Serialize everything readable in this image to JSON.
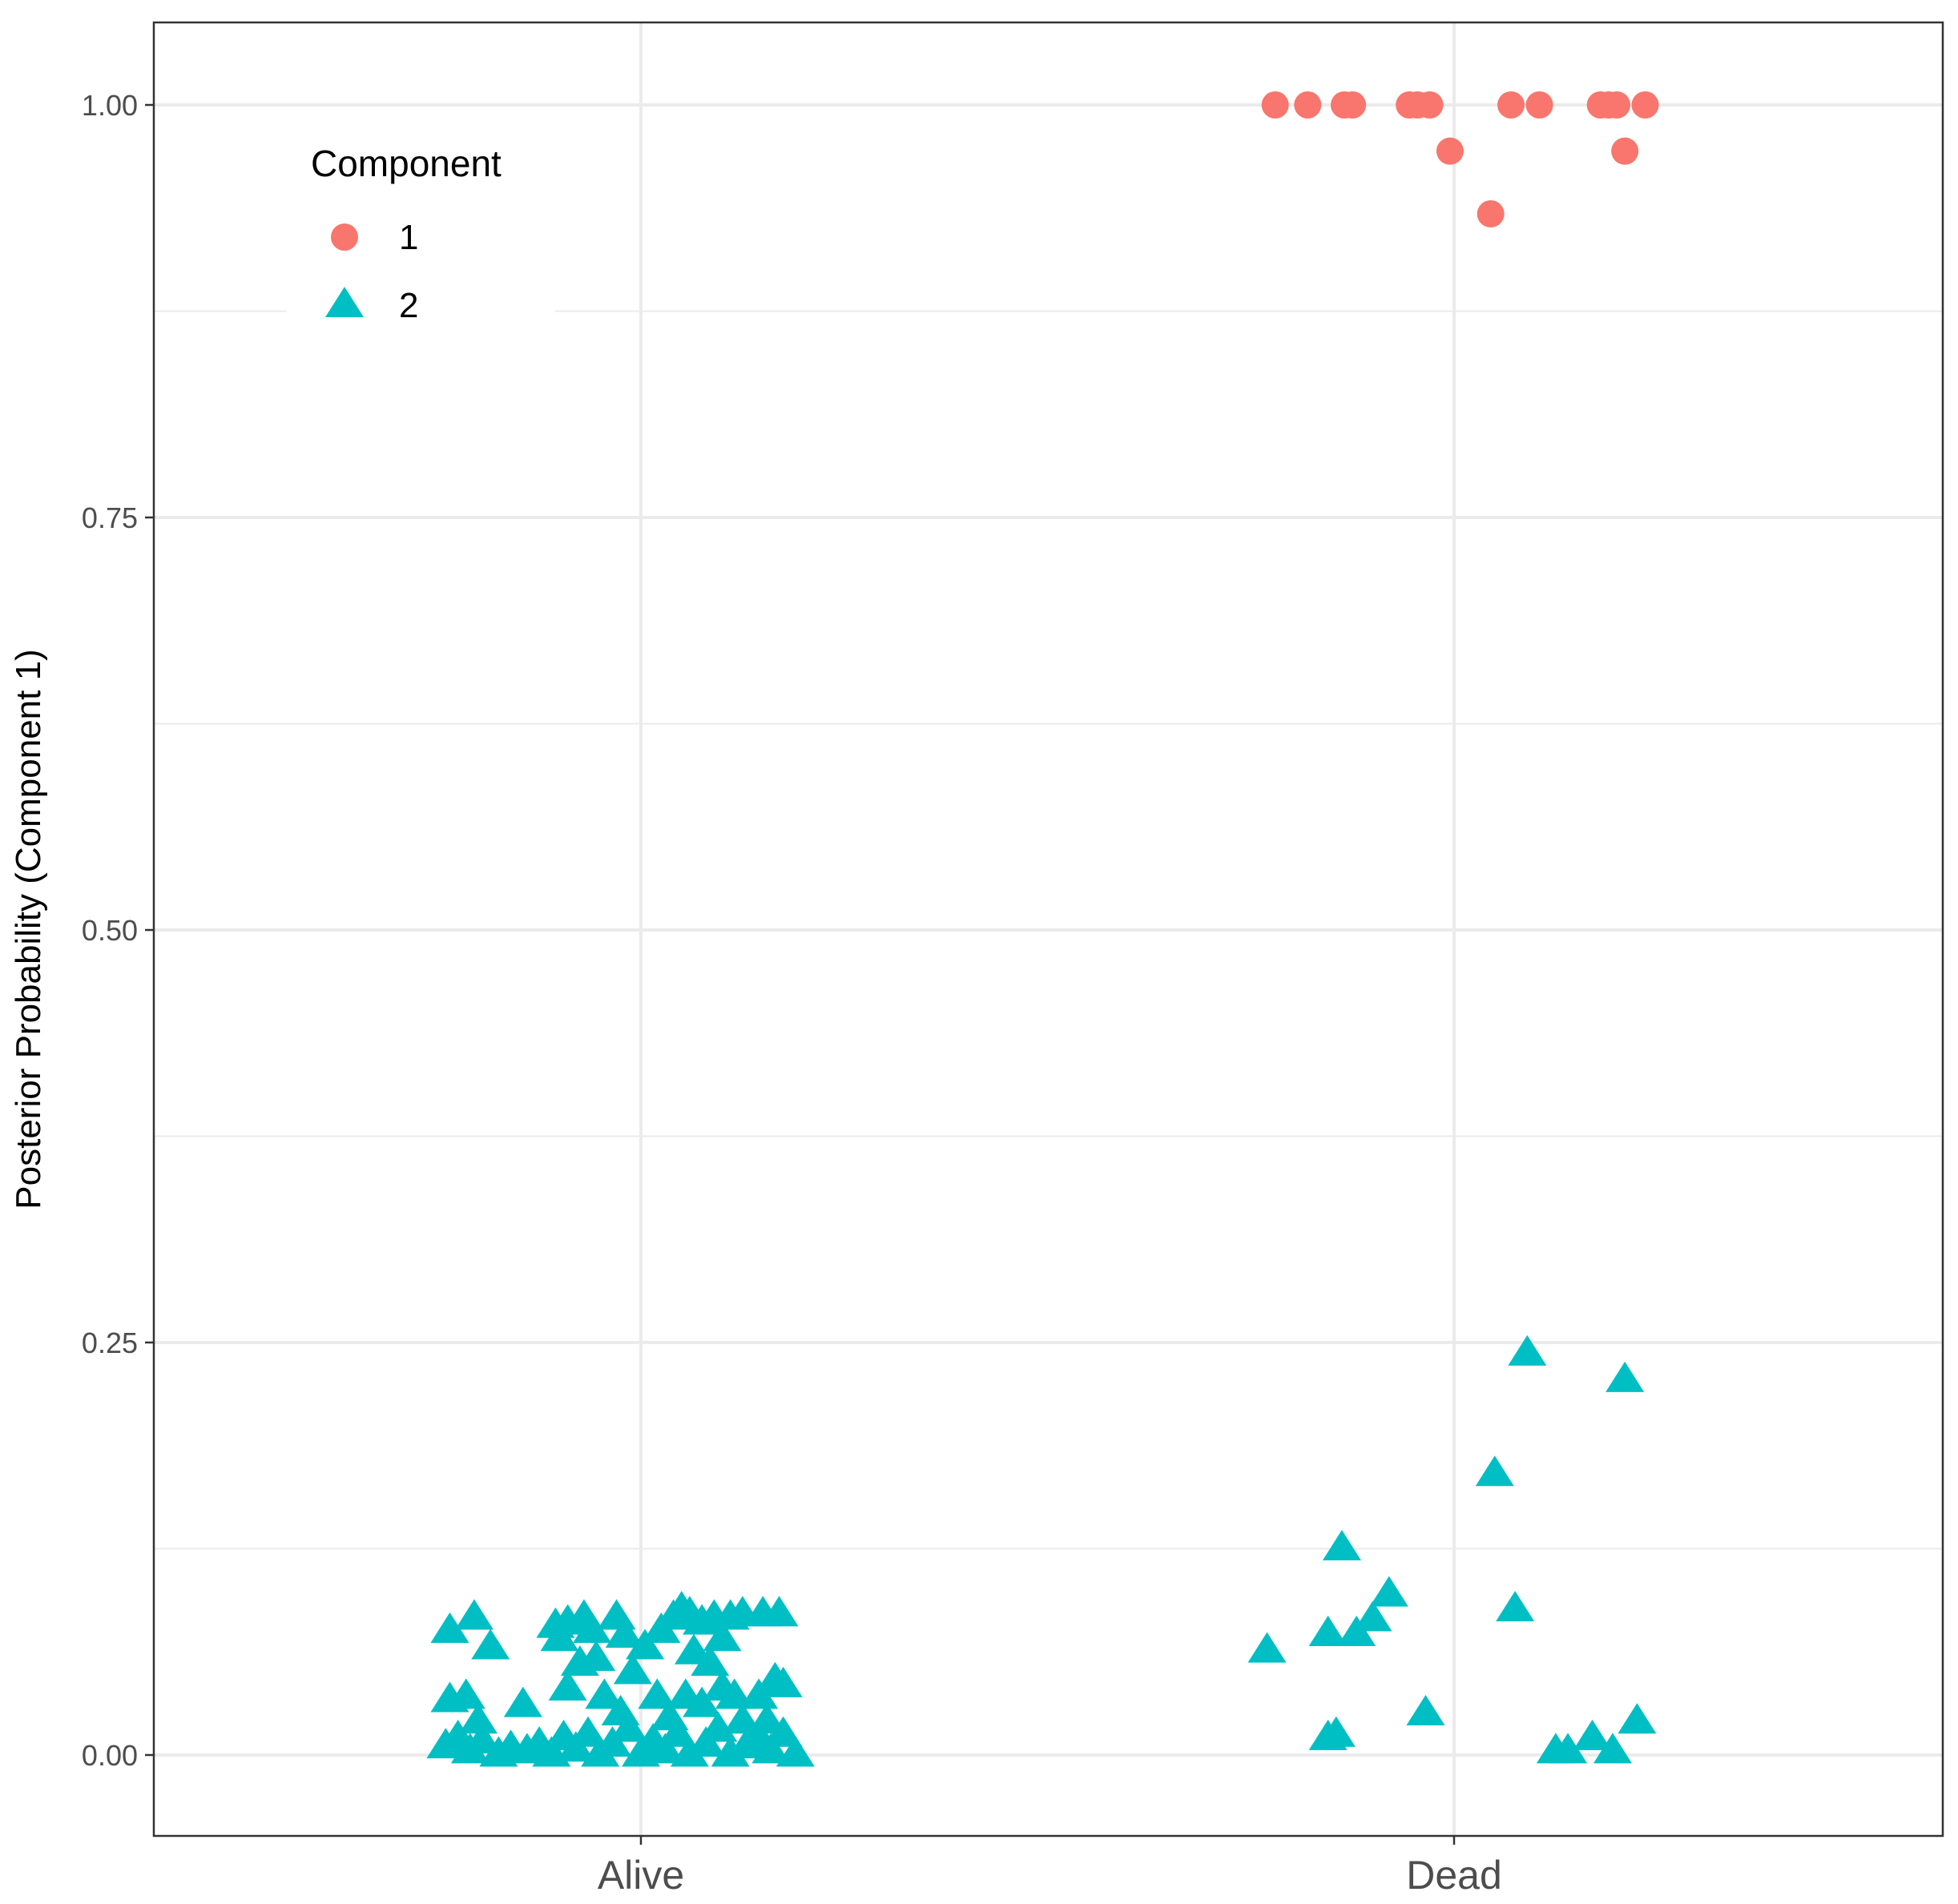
{
  "chart_data": {
    "type": "scatter",
    "title": "",
    "xlabel": "",
    "ylabel": "Posterior Probability (Component 1)",
    "categories": [
      "Alive",
      "Dead"
    ],
    "ylim": [
      -0.05,
      1.05
    ],
    "y_ticks": [
      0.0,
      0.25,
      0.5,
      0.75,
      1.0
    ],
    "y_tick_labels": [
      "0.00",
      "0.25",
      "0.50",
      "0.75",
      "1.00"
    ],
    "grid": true,
    "jitter_width": 0.5,
    "legend": {
      "title": "Component",
      "position": "top-left",
      "entries": [
        {
          "label": "1",
          "shape": "circle",
          "color": "#F8766D"
        },
        {
          "label": "2",
          "shape": "triangle",
          "color": "#00BFC4"
        }
      ]
    },
    "series": [
      {
        "name": "1",
        "shape": "circle",
        "color": "#F8766D",
        "points": [
          {
            "x": "Dead",
            "offset": -0.22,
            "y": 1.0
          },
          {
            "x": "Dead",
            "offset": -0.18,
            "y": 1.0
          },
          {
            "x": "Dead",
            "offset": -0.135,
            "y": 1.0
          },
          {
            "x": "Dead",
            "offset": -0.125,
            "y": 1.0
          },
          {
            "x": "Dead",
            "offset": -0.055,
            "y": 1.0
          },
          {
            "x": "Dead",
            "offset": -0.045,
            "y": 1.0
          },
          {
            "x": "Dead",
            "offset": -0.03,
            "y": 1.0
          },
          {
            "x": "Dead",
            "offset": -0.005,
            "y": 0.972
          },
          {
            "x": "Dead",
            "offset": 0.045,
            "y": 0.934
          },
          {
            "x": "Dead",
            "offset": 0.07,
            "y": 1.0
          },
          {
            "x": "Dead",
            "offset": 0.105,
            "y": 1.0
          },
          {
            "x": "Dead",
            "offset": 0.18,
            "y": 1.0
          },
          {
            "x": "Dead",
            "offset": 0.19,
            "y": 1.0
          },
          {
            "x": "Dead",
            "offset": 0.2,
            "y": 1.0
          },
          {
            "x": "Dead",
            "offset": 0.21,
            "y": 0.972
          },
          {
            "x": "Dead",
            "offset": 0.235,
            "y": 1.0
          }
        ]
      },
      {
        "name": "2",
        "shape": "triangle",
        "color": "#00BFC4",
        "points": [
          {
            "x": "Alive",
            "offset": -0.235,
            "y": 0.075
          },
          {
            "x": "Alive",
            "offset": -0.205,
            "y": 0.083
          },
          {
            "x": "Alive",
            "offset": -0.185,
            "y": 0.065
          },
          {
            "x": "Alive",
            "offset": -0.235,
            "y": 0.033
          },
          {
            "x": "Alive",
            "offset": -0.215,
            "y": 0.035
          },
          {
            "x": "Alive",
            "offset": -0.145,
            "y": 0.03
          },
          {
            "x": "Alive",
            "offset": -0.105,
            "y": 0.078
          },
          {
            "x": "Alive",
            "offset": -0.09,
            "y": 0.08
          },
          {
            "x": "Alive",
            "offset": -0.1,
            "y": 0.07
          },
          {
            "x": "Alive",
            "offset": -0.07,
            "y": 0.083
          },
          {
            "x": "Alive",
            "offset": -0.06,
            "y": 0.075
          },
          {
            "x": "Alive",
            "offset": -0.09,
            "y": 0.04
          },
          {
            "x": "Alive",
            "offset": -0.075,
            "y": 0.055
          },
          {
            "x": "Alive",
            "offset": -0.055,
            "y": 0.058
          },
          {
            "x": "Alive",
            "offset": -0.045,
            "y": 0.035
          },
          {
            "x": "Alive",
            "offset": -0.03,
            "y": 0.083
          },
          {
            "x": "Alive",
            "offset": -0.02,
            "y": 0.072
          },
          {
            "x": "Alive",
            "offset": -0.01,
            "y": 0.05
          },
          {
            "x": "Alive",
            "offset": 0.005,
            "y": 0.065
          },
          {
            "x": "Alive",
            "offset": -0.025,
            "y": 0.025
          },
          {
            "x": "Alive",
            "offset": 0.025,
            "y": 0.075
          },
          {
            "x": "Alive",
            "offset": 0.02,
            "y": 0.035
          },
          {
            "x": "Alive",
            "offset": 0.04,
            "y": 0.083
          },
          {
            "x": "Alive",
            "offset": 0.05,
            "y": 0.088
          },
          {
            "x": "Alive",
            "offset": 0.06,
            "y": 0.085
          },
          {
            "x": "Alive",
            "offset": 0.075,
            "y": 0.08
          },
          {
            "x": "Alive",
            "offset": 0.065,
            "y": 0.062
          },
          {
            "x": "Alive",
            "offset": 0.09,
            "y": 0.083
          },
          {
            "x": "Alive",
            "offset": 0.1,
            "y": 0.07
          },
          {
            "x": "Alive",
            "offset": 0.055,
            "y": 0.035
          },
          {
            "x": "Alive",
            "offset": 0.075,
            "y": 0.03
          },
          {
            "x": "Alive",
            "offset": 0.085,
            "y": 0.055
          },
          {
            "x": "Alive",
            "offset": 0.11,
            "y": 0.083
          },
          {
            "x": "Alive",
            "offset": 0.125,
            "y": 0.085
          },
          {
            "x": "Alive",
            "offset": 0.15,
            "y": 0.085
          },
          {
            "x": "Alive",
            "offset": 0.17,
            "y": 0.085
          },
          {
            "x": "Alive",
            "offset": 0.1,
            "y": 0.04
          },
          {
            "x": "Alive",
            "offset": 0.115,
            "y": 0.035
          },
          {
            "x": "Alive",
            "offset": 0.145,
            "y": 0.035
          },
          {
            "x": "Alive",
            "offset": 0.165,
            "y": 0.045
          },
          {
            "x": "Alive",
            "offset": 0.175,
            "y": 0.042
          },
          {
            "x": "Alive",
            "offset": 0.125,
            "y": 0.02
          },
          {
            "x": "Alive",
            "offset": 0.155,
            "y": 0.02
          },
          {
            "x": "Alive",
            "offset": -0.24,
            "y": 0.005
          },
          {
            "x": "Alive",
            "offset": -0.225,
            "y": 0.01
          },
          {
            "x": "Alive",
            "offset": -0.21,
            "y": 0.002
          },
          {
            "x": "Alive",
            "offset": -0.195,
            "y": 0.008
          },
          {
            "x": "Alive",
            "offset": -0.175,
            "y": 0.0
          },
          {
            "x": "Alive",
            "offset": -0.16,
            "y": 0.004
          },
          {
            "x": "Alive",
            "offset": -0.14,
            "y": 0.002
          },
          {
            "x": "Alive",
            "offset": -0.125,
            "y": 0.006
          },
          {
            "x": "Alive",
            "offset": -0.11,
            "y": 0.0
          },
          {
            "x": "Alive",
            "offset": -0.095,
            "y": 0.01
          },
          {
            "x": "Alive",
            "offset": -0.08,
            "y": 0.003
          },
          {
            "x": "Alive",
            "offset": -0.065,
            "y": 0.012
          },
          {
            "x": "Alive",
            "offset": -0.05,
            "y": 0.0
          },
          {
            "x": "Alive",
            "offset": -0.035,
            "y": 0.006
          },
          {
            "x": "Alive",
            "offset": -0.015,
            "y": 0.015
          },
          {
            "x": "Alive",
            "offset": 0.0,
            "y": 0.0
          },
          {
            "x": "Alive",
            "offset": 0.015,
            "y": 0.008
          },
          {
            "x": "Alive",
            "offset": 0.03,
            "y": 0.002
          },
          {
            "x": "Alive",
            "offset": 0.045,
            "y": 0.012
          },
          {
            "x": "Alive",
            "offset": 0.06,
            "y": 0.0
          },
          {
            "x": "Alive",
            "offset": 0.08,
            "y": 0.006
          },
          {
            "x": "Alive",
            "offset": 0.095,
            "y": 0.015
          },
          {
            "x": "Alive",
            "offset": 0.11,
            "y": 0.0
          },
          {
            "x": "Alive",
            "offset": 0.13,
            "y": 0.005
          },
          {
            "x": "Alive",
            "offset": 0.145,
            "y": 0.01
          },
          {
            "x": "Alive",
            "offset": 0.16,
            "y": 0.002
          },
          {
            "x": "Alive",
            "offset": 0.175,
            "y": 0.012
          },
          {
            "x": "Alive",
            "offset": 0.19,
            "y": 0.0
          },
          {
            "x": "Alive",
            "offset": -0.2,
            "y": 0.02
          },
          {
            "x": "Alive",
            "offset": 0.035,
            "y": 0.022
          },
          {
            "x": "Dead",
            "offset": -0.23,
            "y": 0.063
          },
          {
            "x": "Dead",
            "offset": -0.155,
            "y": 0.073
          },
          {
            "x": "Dead",
            "offset": -0.138,
            "y": 0.125
          },
          {
            "x": "Dead",
            "offset": -0.12,
            "y": 0.073
          },
          {
            "x": "Dead",
            "offset": -0.1,
            "y": 0.082
          },
          {
            "x": "Dead",
            "offset": -0.08,
            "y": 0.097
          },
          {
            "x": "Dead",
            "offset": -0.155,
            "y": 0.01
          },
          {
            "x": "Dead",
            "offset": -0.145,
            "y": 0.012
          },
          {
            "x": "Dead",
            "offset": -0.035,
            "y": 0.025
          },
          {
            "x": "Dead",
            "offset": 0.05,
            "y": 0.17
          },
          {
            "x": "Dead",
            "offset": 0.075,
            "y": 0.088
          },
          {
            "x": "Dead",
            "offset": 0.09,
            "y": 0.243
          },
          {
            "x": "Dead",
            "offset": 0.125,
            "y": 0.002
          },
          {
            "x": "Dead",
            "offset": 0.14,
            "y": 0.002
          },
          {
            "x": "Dead",
            "offset": 0.17,
            "y": 0.01
          },
          {
            "x": "Dead",
            "offset": 0.195,
            "y": 0.002
          },
          {
            "x": "Dead",
            "offset": 0.21,
            "y": 0.227
          },
          {
            "x": "Dead",
            "offset": 0.225,
            "y": 0.02
          }
        ]
      }
    ]
  }
}
